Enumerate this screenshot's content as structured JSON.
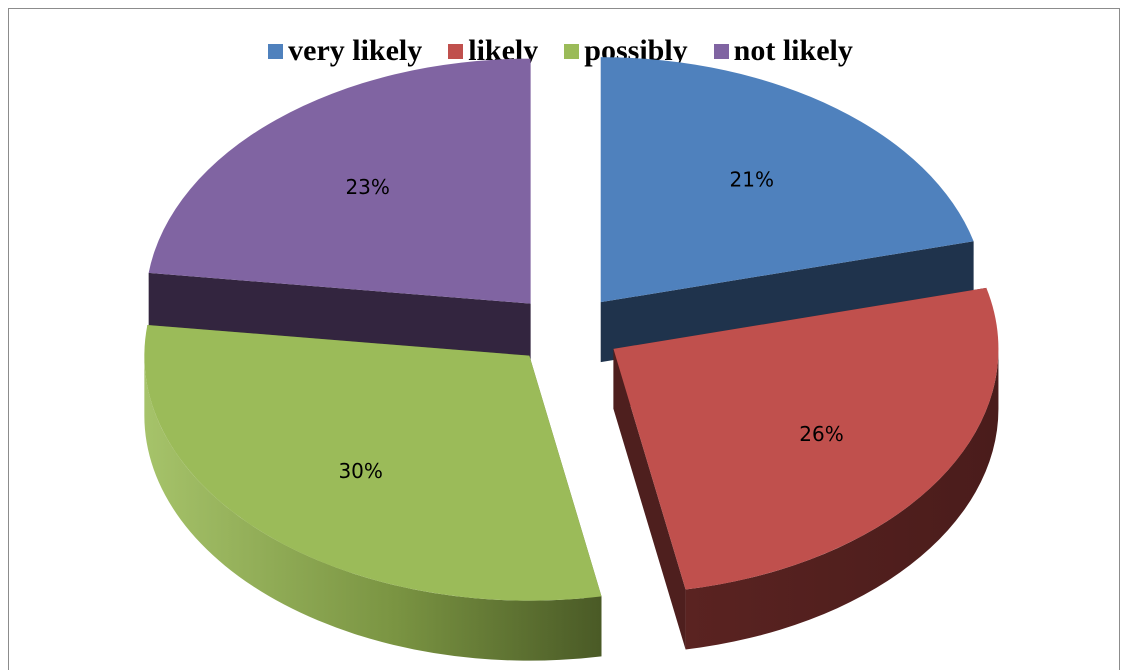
{
  "chart_data": {
    "type": "pie",
    "variant": "3d-exploded",
    "title": "",
    "legend_position": "top",
    "categories": [
      "very likely",
      "likely",
      "possibly",
      "not likely"
    ],
    "values": [
      21,
      26,
      30,
      23
    ],
    "value_labels": [
      "21%",
      "26%",
      "30%",
      "23%"
    ],
    "colors": [
      "#4f81bd",
      "#c0504d",
      "#9bbb59",
      "#8064a2"
    ],
    "side_colors": [
      "#1f334c",
      "#4e1f1e",
      "#4c5c2a",
      "#33253f"
    ]
  }
}
